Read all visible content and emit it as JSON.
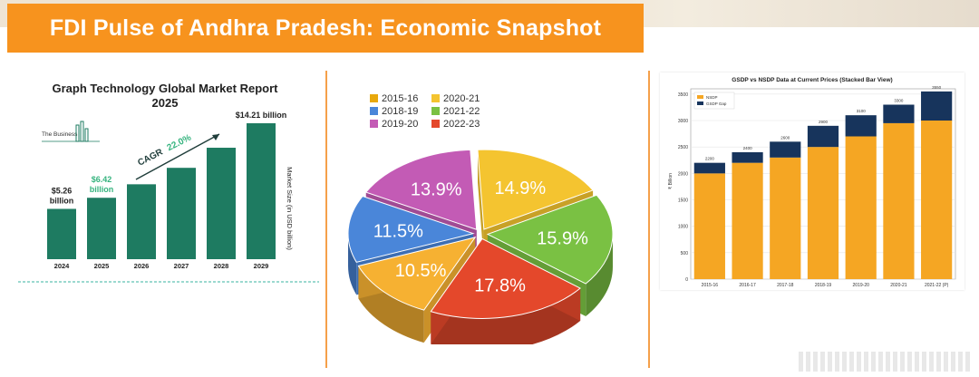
{
  "banner": {
    "title": "FDI Pulse of Andhra Pradesh: Economic Snapshot"
  },
  "colors": {
    "banner": "#f7931e",
    "teal": "#1e7b61",
    "cagr_green": "#35b37e",
    "nsdp": "#f5a623",
    "gsdp_gap": "#17345c"
  },
  "chart_data": [
    {
      "type": "bar",
      "title": "Graph Technology Global Market Report",
      "subtitle": "2025",
      "logo_text": "The Business",
      "categories": [
        "2024",
        "2025",
        "2026",
        "2027",
        "2028",
        "2029"
      ],
      "values": [
        5.26,
        6.42,
        7.83,
        9.55,
        11.65,
        14.21
      ],
      "value_labels": [
        "$5.26 billion",
        "$6.42 billion",
        "",
        "",
        "",
        "$14.21 billion"
      ],
      "value_label_lines": [
        [
          "$5.26",
          "billion"
        ],
        [
          "$6.42",
          "billion"
        ],
        [],
        [],
        [],
        [
          "$14.21 billion"
        ]
      ],
      "ylabel": "Market Size (in USD billion)",
      "xlabel": "",
      "ylim": [
        0,
        14.21
      ],
      "annotation": {
        "cagr_label": "CAGR",
        "cagr_value": "22.0%"
      },
      "grid": false
    },
    {
      "type": "pie",
      "legend": [
        "2015-16",
        "2018-19",
        "2019-20",
        "2020-21",
        "2021-22",
        "2022-23"
      ],
      "legend_placement": "top",
      "slices": [
        {
          "label": "2015-16",
          "value": 14.9,
          "text": "14.9%",
          "color": "#f4c430"
        },
        {
          "label": "2021-22",
          "value": 15.9,
          "text": "15.9%",
          "color": "#7ac143"
        },
        {
          "label": "2022-23",
          "value": 17.8,
          "text": "17.8%",
          "color": "#e4482b"
        },
        {
          "label": "2020-21",
          "value": 10.5,
          "text": "10.5%",
          "color": "#f6b132"
        },
        {
          "label": "2018-19",
          "value": 11.5,
          "text": "11.5%",
          "color": "#4a86d9"
        },
        {
          "label": "2019-20",
          "value": 13.9,
          "text": "13.9%",
          "color": "#c35bb5"
        }
      ],
      "legend_colors": {
        "2015-16": "#e8a80c",
        "2018-19": "#4a86d9",
        "2019-20": "#c35bb5",
        "2020-21": "#f4c430",
        "2021-22": "#7ac143",
        "2022-23": "#e4482b"
      }
    },
    {
      "type": "bar",
      "stacked": true,
      "title": "GSDP vs NSDP Data at Current Prices (Stacked Bar View)",
      "categories": [
        "2015-16",
        "2016-17",
        "2017-18",
        "2018-19",
        "2019-20",
        "2020-21",
        "2021-22 (P)"
      ],
      "series": [
        {
          "name": "NSDP",
          "values": [
            2000,
            2200,
            2300,
            2500,
            2700,
            2950,
            3000
          ]
        },
        {
          "name": "GSDP Gap",
          "values": [
            200,
            200,
            300,
            400,
            400,
            350,
            550
          ]
        }
      ],
      "totals": [
        "2200",
        "2400",
        "2600",
        "2900",
        "3100",
        "3300",
        "3550"
      ],
      "ylabel": "₹ Billion",
      "xlabel": "",
      "ylim": [
        0,
        3600
      ],
      "yticks": [
        0,
        500,
        1000,
        1500,
        2000,
        2500,
        3000,
        3500
      ],
      "grid": true,
      "legend_placement": "top-left"
    }
  ]
}
